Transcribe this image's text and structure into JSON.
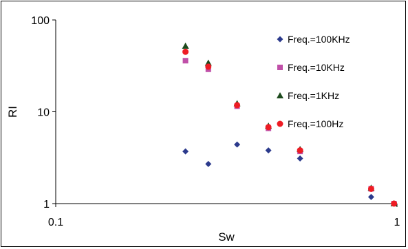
{
  "chart_data": {
    "type": "scatter",
    "title": "",
    "xlabel": "Sw",
    "ylabel": "RI",
    "xscale": "log",
    "yscale": "log",
    "xlim": [
      0.1,
      1
    ],
    "ylim": [
      1,
      100
    ],
    "x_ticks": [
      {
        "value": 0.1,
        "label": "0.1"
      },
      {
        "value": 1,
        "label": "1"
      }
    ],
    "y_ticks": [
      {
        "value": 1,
        "label": "1"
      },
      {
        "value": 10,
        "label": "10"
      },
      {
        "value": 100,
        "label": "100"
      }
    ],
    "grid": false,
    "legend_position": "right",
    "series": [
      {
        "name": "Freq.=100KHz",
        "marker": "diamond",
        "color": "#2b3a8c",
        "points": [
          [
            0.24,
            3.7
          ],
          [
            0.28,
            2.7
          ],
          [
            0.34,
            4.4
          ],
          [
            0.42,
            3.8
          ],
          [
            0.52,
            3.1
          ],
          [
            0.84,
            1.18
          ],
          [
            0.98,
            1.0
          ]
        ]
      },
      {
        "name": "Freq.=10KHz",
        "marker": "square",
        "color": "#c04fa8",
        "points": [
          [
            0.24,
            36
          ],
          [
            0.28,
            29
          ],
          [
            0.34,
            11.5
          ],
          [
            0.42,
            6.6
          ],
          [
            0.52,
            3.7
          ],
          [
            0.84,
            1.45
          ],
          [
            0.98,
            1.0
          ]
        ]
      },
      {
        "name": "Freq.=1KHz",
        "marker": "triangle",
        "color": "#1d4a1d",
        "points": [
          [
            0.24,
            52
          ],
          [
            0.28,
            34
          ],
          [
            0.34,
            12.3
          ],
          [
            0.42,
            7.0
          ],
          [
            0.52,
            3.9
          ],
          [
            0.84,
            1.48
          ],
          [
            0.98,
            1.0
          ]
        ]
      },
      {
        "name": "Freq.=100Hz",
        "marker": "circle",
        "color": "#ee1c24",
        "points": [
          [
            0.24,
            45
          ],
          [
            0.28,
            31
          ],
          [
            0.34,
            11.8
          ],
          [
            0.42,
            6.8
          ],
          [
            0.52,
            3.8
          ],
          [
            0.84,
            1.45
          ],
          [
            0.98,
            1.0
          ]
        ]
      }
    ]
  }
}
